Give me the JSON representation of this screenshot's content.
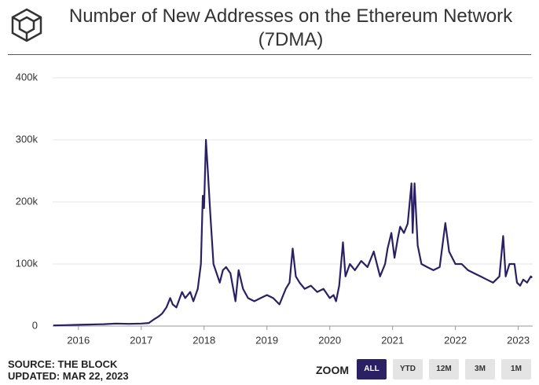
{
  "chart_data": {
    "type": "line",
    "title": "Number of New Addresses on the Ethereum Network (7DMA)",
    "x": [
      2015.6,
      2015.8,
      2016.0,
      2016.2,
      2016.4,
      2016.6,
      2016.8,
      2017.0,
      2017.12,
      2017.19,
      2017.27,
      2017.33,
      2017.4,
      2017.46,
      2017.5,
      2017.56,
      2017.65,
      2017.7,
      2017.78,
      2017.83,
      2017.9,
      2017.95,
      2017.98,
      2018.0,
      2018.03,
      2018.06,
      2018.1,
      2018.15,
      2018.25,
      2018.3,
      2018.35,
      2018.42,
      2018.5,
      2018.55,
      2018.62,
      2018.7,
      2018.8,
      2018.9,
      2019.0,
      2019.1,
      2019.2,
      2019.3,
      2019.36,
      2019.41,
      2019.46,
      2019.52,
      2019.6,
      2019.7,
      2019.8,
      2019.9,
      2020.0,
      2020.06,
      2020.1,
      2020.15,
      2020.21,
      2020.25,
      2020.32,
      2020.4,
      2020.5,
      2020.6,
      2020.7,
      2020.8,
      2020.88,
      2020.92,
      2020.98,
      2021.03,
      2021.08,
      2021.12,
      2021.18,
      2021.24,
      2021.3,
      2021.32,
      2021.35,
      2021.4,
      2021.46,
      2021.55,
      2021.65,
      2021.75,
      2021.84,
      2021.9,
      2022.0,
      2022.1,
      2022.2,
      2022.3,
      2022.4,
      2022.5,
      2022.6,
      2022.7,
      2022.76,
      2022.8,
      2022.86,
      2022.94,
      2022.98,
      2023.03,
      2023.08,
      2023.14,
      2023.2,
      2023.22
    ],
    "series": [
      {
        "name": "New Addresses (7DMA)",
        "color": "#2b2063",
        "values": [
          1000,
          1500,
          2000,
          2500,
          3000,
          4000,
          3500,
          4000,
          5000,
          10000,
          15000,
          20000,
          30000,
          45000,
          35000,
          30000,
          55000,
          45000,
          55000,
          40000,
          60000,
          100000,
          210000,
          190000,
          300000,
          250000,
          180000,
          100000,
          70000,
          90000,
          95000,
          85000,
          40000,
          90000,
          60000,
          45000,
          40000,
          45000,
          50000,
          45000,
          35000,
          60000,
          70000,
          125000,
          80000,
          70000,
          60000,
          65000,
          55000,
          60000,
          45000,
          50000,
          40000,
          65000,
          135000,
          80000,
          100000,
          90000,
          105000,
          95000,
          120000,
          80000,
          100000,
          125000,
          150000,
          110000,
          140000,
          160000,
          150000,
          165000,
          230000,
          150000,
          230000,
          130000,
          100000,
          95000,
          90000,
          95000,
          166000,
          120000,
          100000,
          100000,
          90000,
          85000,
          80000,
          75000,
          70000,
          80000,
          145000,
          80000,
          100000,
          100000,
          70000,
          65000,
          75000,
          70000,
          80000,
          78000
        ]
      }
    ],
    "xlim": [
      2015.59,
      2023.23
    ],
    "xticks": [
      2016,
      2017,
      2018,
      2019,
      2020,
      2021,
      2022,
      2023
    ],
    "ylim": [
      0,
      400000
    ],
    "yticks": [
      0,
      {
        "value": 100000,
        "label": "100k"
      },
      {
        "value": 200000,
        "label": "200k"
      },
      {
        "value": 300000,
        "label": "300k"
      },
      {
        "value": 400000,
        "label": "400k"
      }
    ],
    "grid": true
  },
  "footer": {
    "source": "SOURCE: THE BLOCK",
    "updated": "UPDATED: MAR 22, 2023"
  },
  "zoom": {
    "label": "ZOOM",
    "buttons": [
      "ALL",
      "YTD",
      "12M",
      "3M",
      "1M"
    ]
  }
}
